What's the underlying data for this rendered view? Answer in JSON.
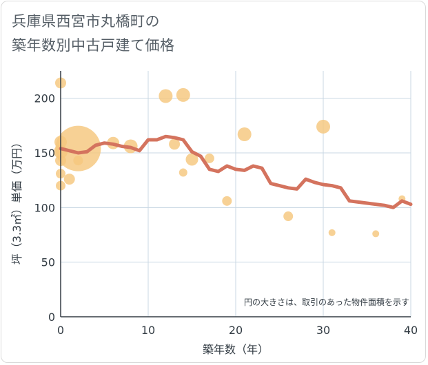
{
  "title_lines": [
    "兵庫県西宮市丸橋町の",
    "築年数別中古戸建て価格"
  ],
  "chart_data": {
    "type": "scatter",
    "xlabel": "築年数（年）",
    "ylabel": "坪（3.3㎡）単価（万円）",
    "xlim": [
      0,
      40
    ],
    "ylim": [
      0,
      225
    ],
    "xticks": [
      0,
      10,
      20,
      30,
      40
    ],
    "yticks": [
      0,
      50,
      100,
      150,
      200
    ],
    "grid": true,
    "note": "円の大きさは、取引のあった物件面積を示す",
    "colors": {
      "bubble": "#f5c77e",
      "line": "#d4735e",
      "grid": "#c8d7e3",
      "axis": "#333c44"
    },
    "bubbles": [
      {
        "x": 0,
        "y": 214,
        "size": 8
      },
      {
        "x": 0,
        "y": 160,
        "size": 9
      },
      {
        "x": 0,
        "y": 151,
        "size": 10
      },
      {
        "x": 0,
        "y": 143,
        "size": 8
      },
      {
        "x": 0,
        "y": 131,
        "size": 7
      },
      {
        "x": 0,
        "y": 120,
        "size": 7
      },
      {
        "x": 1,
        "y": 126,
        "size": 8
      },
      {
        "x": 2,
        "y": 154,
        "size": 33
      },
      {
        "x": 2,
        "y": 143,
        "size": 7
      },
      {
        "x": 6,
        "y": 159,
        "size": 9
      },
      {
        "x": 8,
        "y": 156,
        "size": 10
      },
      {
        "x": 12,
        "y": 202,
        "size": 10
      },
      {
        "x": 13,
        "y": 158,
        "size": 8
      },
      {
        "x": 14,
        "y": 203,
        "size": 10
      },
      {
        "x": 14,
        "y": 132,
        "size": 6
      },
      {
        "x": 15,
        "y": 144,
        "size": 9
      },
      {
        "x": 17,
        "y": 145,
        "size": 7
      },
      {
        "x": 19,
        "y": 106,
        "size": 7
      },
      {
        "x": 21,
        "y": 167,
        "size": 10
      },
      {
        "x": 26,
        "y": 92,
        "size": 7
      },
      {
        "x": 30,
        "y": 174,
        "size": 10
      },
      {
        "x": 31,
        "y": 77,
        "size": 5
      },
      {
        "x": 36,
        "y": 76,
        "size": 5
      },
      {
        "x": 39,
        "y": 108,
        "size": 5
      }
    ],
    "series": [
      {
        "x": [
          0,
          1,
          2,
          3,
          4,
          5,
          6,
          7,
          8,
          9,
          10,
          11,
          12,
          13,
          14,
          15,
          16,
          17,
          18,
          19,
          20,
          21,
          22,
          23,
          24,
          25,
          26,
          27,
          28,
          29,
          30,
          31,
          32,
          33,
          34,
          35,
          36,
          37,
          38,
          39,
          40
        ],
        "y": [
          154,
          152,
          150,
          151,
          157,
          159,
          158,
          156,
          155,
          152,
          162,
          162,
          165,
          164,
          162,
          151,
          147,
          135,
          133,
          138,
          135,
          134,
          138,
          136,
          122,
          120,
          118,
          117,
          126,
          123,
          121,
          120,
          118,
          106,
          105,
          104,
          103,
          102,
          100,
          106,
          103
        ]
      }
    ]
  }
}
